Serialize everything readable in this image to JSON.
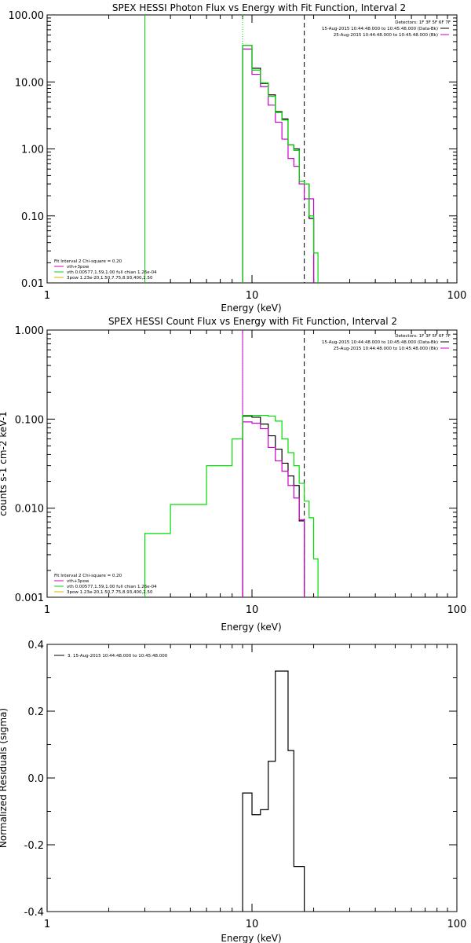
{
  "chart_data": [
    {
      "type": "line",
      "title": "SPEX HESSI Photon Flux vs Energy with Fit Function, Interval 2",
      "xlabel": "Energy (keV)",
      "ylabel": "",
      "xscale": "log",
      "yscale": "log",
      "xlim": [
        1,
        100
      ],
      "ylim": [
        0.01,
        100
      ],
      "xticks": [
        "1",
        "10",
        "100"
      ],
      "yticks": [
        "0.01",
        "0.10",
        "1.00",
        "10.00",
        "100.00"
      ],
      "header_lines": [
        "Detectors: 1F 3F 5F 6F 7F",
        "15-Aug-2015 10:44:48.000 to 10:45:48.000 (Data-Bk)",
        "25-Aug-2015 10:44:48.000 to 10:45:48.000 (Bk)"
      ],
      "legend": [
        "Fit Interval 2   Chi-square = 0.20",
        "vth+3pow",
        "vth 0.00577,1.59,1.00  full chian 1.26e-04",
        "3pow 1.23e-20,1.50,7.75,8.93,400,2.50"
      ],
      "edges": [
        9,
        10,
        11,
        12,
        13,
        14,
        15,
        16,
        17,
        18,
        19,
        20,
        21
      ],
      "series": [
        {
          "name": "Data-Bk",
          "color": "#000000",
          "values": [
            35,
            16,
            9.5,
            6.4,
            3.6,
            2.8,
            1.15,
            1.0,
            0.33,
            0.3,
            0.092
          ]
        },
        {
          "name": "Bk",
          "color": "#cc00cc",
          "values": [
            31,
            13,
            8.5,
            4.5,
            2.5,
            1.4,
            0.72,
            0.55,
            0.3,
            0.18,
            0.18
          ]
        },
        {
          "name": "vth+3pow",
          "color": "#00dd00",
          "edges": [
            9,
            10,
            11,
            12,
            13,
            14,
            15,
            16,
            17,
            18,
            19,
            20,
            21
          ],
          "values": [
            35,
            15,
            9.7,
            6.1,
            3.5,
            2.7,
            1.15,
            0.95,
            0.33,
            0.3,
            0.1,
            0.028
          ]
        }
      ],
      "vlines": [
        {
          "x": 3,
          "color": "#00dd00",
          "style": "solid"
        },
        {
          "x": 9,
          "color": "#00dd00",
          "style": "dotted"
        },
        {
          "x": 18,
          "color": "#000000",
          "style": "dashed"
        }
      ]
    },
    {
      "type": "line",
      "title": "SPEX HESSI Count Flux vs Energy with Fit Function, Interval 2",
      "xlabel": "Energy (keV)",
      "ylabel": "counts s-1 cm-2 keV-1",
      "xscale": "log",
      "yscale": "log",
      "xlim": [
        1,
        100
      ],
      "ylim": [
        0.001,
        1
      ],
      "xticks": [
        "1",
        "10",
        "100"
      ],
      "yticks": [
        "0.001",
        "0.010",
        "0.100",
        "1.000"
      ],
      "header_lines": [
        "Detectors: 1F 3F 5F 6F 7F",
        "15-Aug-2015 10:44:48.000 to 10:45:48.000 (Data-Bk)",
        "25-Aug-2015 10:44:48.000 to 10:45:48.000 (Bk)"
      ],
      "legend": [
        "Fit Interval 2   Chi-square = 0.20",
        "vth+3pow",
        "vth 0.00577,1.59,1.00  full chian 1.26e-04",
        "3pow 1.23e-20,1.50,7.75,8.93,400,2.50"
      ],
      "edges": [
        9,
        10,
        11,
        12,
        13,
        14,
        15,
        16,
        17,
        18
      ],
      "series": [
        {
          "name": "Data-Bk",
          "color": "#000000",
          "edges": [
            9,
            10,
            11,
            12,
            13,
            14,
            15,
            16,
            17,
            18
          ],
          "values": [
            0.108,
            0.105,
            0.088,
            0.065,
            0.046,
            0.032,
            0.023,
            0.018,
            0.0072
          ]
        },
        {
          "name": "Bk",
          "color": "#cc00cc",
          "edges": [
            9,
            10,
            11,
            12,
            13,
            14,
            15,
            16,
            17,
            18
          ],
          "values": [
            0.093,
            0.09,
            0.078,
            0.048,
            0.034,
            0.026,
            0.018,
            0.013,
            0.0074
          ]
        },
        {
          "name": "vth+3pow",
          "color": "#00dd00",
          "edges": [
            3,
            4,
            5,
            6,
            7,
            8,
            9,
            10,
            11,
            12,
            13,
            14,
            15,
            16,
            17,
            18,
            19,
            20,
            21
          ],
          "values": [
            0.0052,
            0.011,
            0.011,
            0.03,
            0.03,
            0.06,
            0.11,
            0.11,
            0.11,
            0.108,
            0.095,
            0.06,
            0.042,
            0.03,
            0.019,
            0.012,
            0.0078,
            0.0027
          ]
        }
      ],
      "vlines": [
        {
          "x": 9,
          "color": "#000000",
          "style": "dotted"
        },
        {
          "x": 9,
          "color": "#cc00cc",
          "style": "solid"
        },
        {
          "x": 18,
          "color": "#000000",
          "style": "dashed"
        }
      ]
    },
    {
      "type": "line",
      "title": "",
      "xlabel": "Energy (keV)",
      "ylabel": "Normalized Residuals (sigma)",
      "xscale": "log",
      "yscale": "linear",
      "xlim": [
        1,
        100
      ],
      "ylim": [
        -0.4,
        0.4
      ],
      "xticks": [
        "1",
        "10",
        "100"
      ],
      "yticks": [
        "-0.4",
        "-0.2",
        "0.0",
        "0.2",
        "0.4"
      ],
      "legend": [
        "3. 15-Aug-2015 10:44:48.000 to 10:45:48.000"
      ],
      "edges": [
        9,
        10,
        11,
        12,
        13,
        14,
        15,
        16,
        17,
        18
      ],
      "series": [
        {
          "name": "3. 15-Aug-2015 10:44:48.000 to 10:45:48.000",
          "color": "#000000",
          "values": [
            -0.045,
            -0.11,
            -0.095,
            0.05,
            0.32,
            0.32,
            0.082,
            -0.265,
            -0.265
          ]
        }
      ]
    }
  ]
}
